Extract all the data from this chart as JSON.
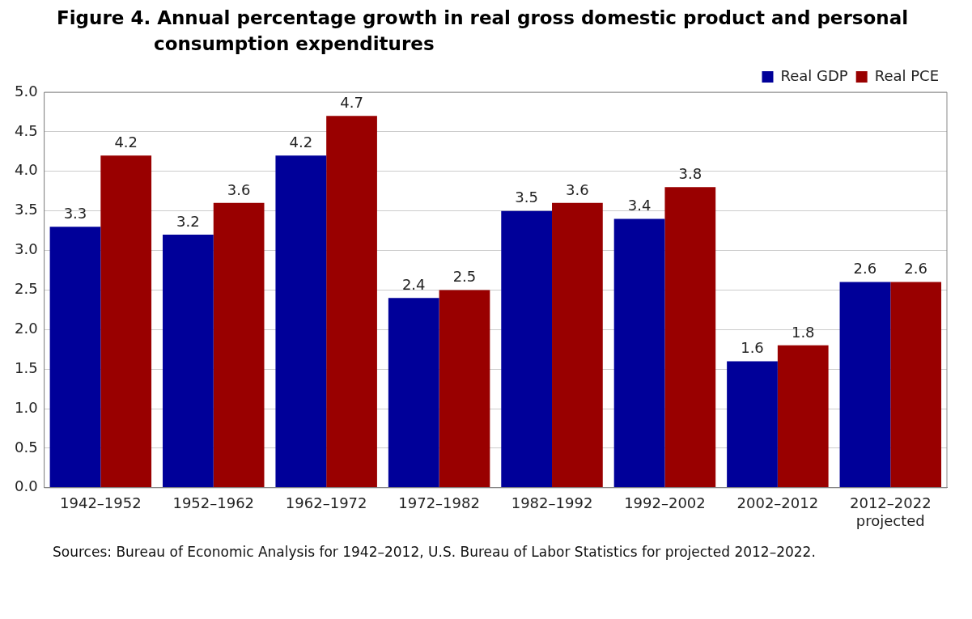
{
  "chart_data": {
    "type": "bar",
    "title": "Figure 4. Annual percentage growth in real gross domestic product and personal consumption expenditures",
    "categories": [
      "1942–1952",
      "1952–1962",
      "1962–1972",
      "1972–1982",
      "1982–1992",
      "1992–2002",
      "2002–2012",
      "2012–2022 projected"
    ],
    "series": [
      {
        "name": "Real GDP",
        "color": "#000099",
        "values": [
          3.3,
          3.2,
          4.2,
          2.4,
          3.5,
          3.4,
          1.6,
          2.6
        ]
      },
      {
        "name": "Real PCE",
        "color": "#990000",
        "values": [
          4.2,
          3.6,
          4.7,
          2.5,
          3.6,
          3.8,
          1.8,
          2.6
        ]
      }
    ],
    "ylim": [
      0,
      5
    ],
    "yticks": [
      "0.0",
      "0.5",
      "1.0",
      "1.5",
      "2.0",
      "2.5",
      "3.0",
      "3.5",
      "4.0",
      "4.5",
      "5.0"
    ],
    "grid": "y",
    "legend": "top right",
    "data_labels": true,
    "annotations": [
      "Sources: Bureau of Economic Analysis for 1942–2012, U.S. Bureau of Labor Statistics for projected 2012–2022."
    ]
  }
}
